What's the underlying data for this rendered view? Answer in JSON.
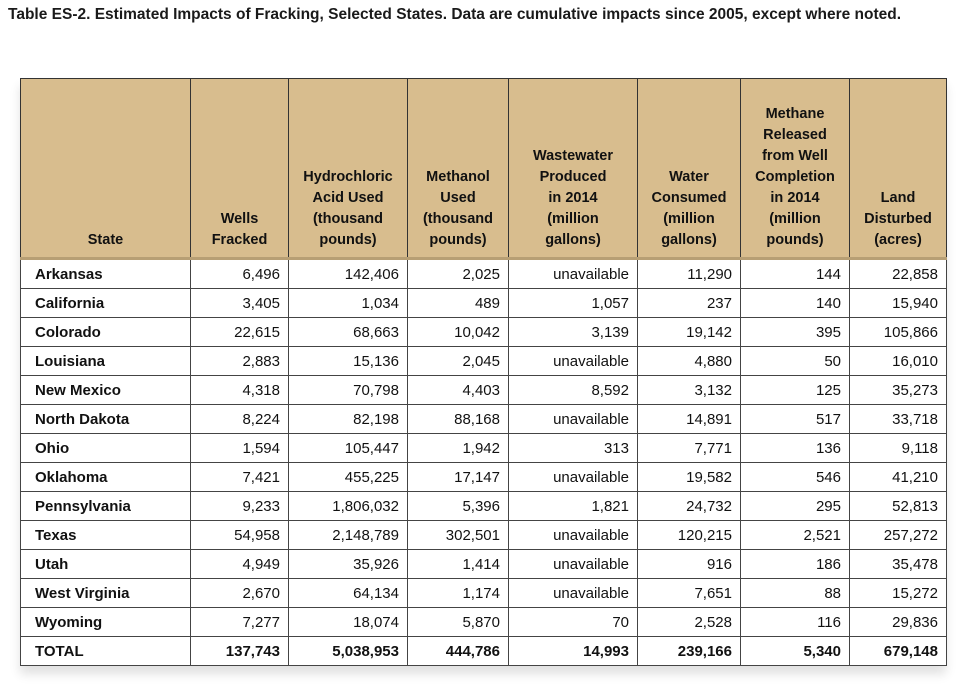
{
  "title": "Table ES-2. Estimated Impacts of Fracking, Selected States. Data are cumulative impacts since 2005, except where noted.",
  "colors": {
    "header_bg": "#d8bd8e"
  },
  "headers": [
    "State",
    "Wells\nFracked",
    "Hydrochloric\nAcid Used\n(thousand\npounds)",
    "Methanol\nUsed\n(thousand\npounds)",
    "Wastewater\nProduced\nin 2014\n(million\ngallons)",
    "Water\nConsumed\n(million\ngallons)",
    "Methane\nReleased\nfrom Well\nCompletion\nin 2014\n(million\npounds)",
    "Land\nDisturbed\n(acres)"
  ],
  "rows": [
    [
      "Arkansas",
      "6,496",
      "142,406",
      "2,025",
      "unavailable",
      "11,290",
      "144",
      "22,858"
    ],
    [
      "California",
      "3,405",
      "1,034",
      "489",
      "1,057",
      "237",
      "140",
      "15,940"
    ],
    [
      "Colorado",
      "22,615",
      "68,663",
      "10,042",
      "3,139",
      "19,142",
      "395",
      "105,866"
    ],
    [
      "Louisiana",
      "2,883",
      "15,136",
      "2,045",
      "unavailable",
      "4,880",
      "50",
      "16,010"
    ],
    [
      "New Mexico",
      "4,318",
      "70,798",
      "4,403",
      "8,592",
      "3,132",
      "125",
      "35,273"
    ],
    [
      "North Dakota",
      "8,224",
      "82,198",
      "88,168",
      "unavailable",
      "14,891",
      "517",
      "33,718"
    ],
    [
      "Ohio",
      "1,594",
      "105,447",
      "1,942",
      "313",
      "7,771",
      "136",
      "9,118"
    ],
    [
      "Oklahoma",
      "7,421",
      "455,225",
      "17,147",
      "unavailable",
      "19,582",
      "546",
      "41,210"
    ],
    [
      "Pennsylvania",
      "9,233",
      "1,806,032",
      "5,396",
      "1,821",
      "24,732",
      "295",
      "52,813"
    ],
    [
      "Texas",
      "54,958",
      "2,148,789",
      "302,501",
      "unavailable",
      "120,215",
      "2,521",
      "257,272"
    ],
    [
      "Utah",
      "4,949",
      "35,926",
      "1,414",
      "unavailable",
      "916",
      "186",
      "35,478"
    ],
    [
      "West Virginia",
      "2,670",
      "64,134",
      "1,174",
      "unavailable",
      "7,651",
      "88",
      "15,272"
    ],
    [
      "Wyoming",
      "7,277",
      "18,074",
      "5,870",
      "70",
      "2,528",
      "116",
      "29,836"
    ]
  ],
  "total": [
    "TOTAL",
    "137,743",
    "5,038,953",
    "444,786",
    "14,993",
    "239,166",
    "5,340",
    "679,148"
  ]
}
